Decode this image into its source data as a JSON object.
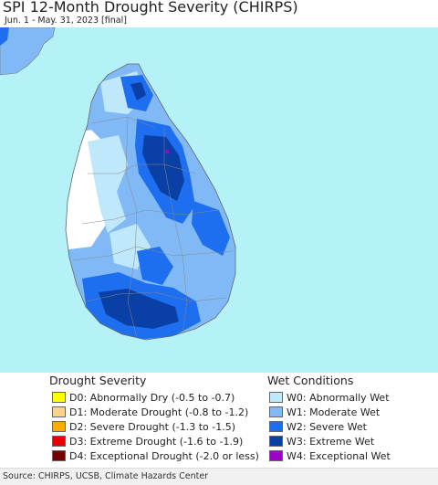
{
  "title": "SPI 12-Month Drought Severity (CHIRPS)",
  "subtitle": "Jun. 1 - May. 31, 2023 [final]",
  "legend_drought": {
    "title": "Drought Severity",
    "items": [
      {
        "label": "D0: Abnormally Dry (-0.5 to -0.7)",
        "color": "#ffff00"
      },
      {
        "label": "D1: Moderate Drought (-0.8 to -1.2)",
        "color": "#fcd28c"
      },
      {
        "label": "D2: Severe Drought (-1.3 to -1.5)",
        "color": "#ffaa00"
      },
      {
        "label": "D3: Extreme Drought (-1.6 to -1.9)",
        "color": "#e60000"
      },
      {
        "label": "D4: Exceptional Drought (-2.0 or less)",
        "color": "#730000"
      }
    ]
  },
  "legend_wet": {
    "title": "Wet Conditions",
    "items": [
      {
        "label": "W0: Abnormally Wet",
        "color": "#bfe8fb"
      },
      {
        "label": "W1: Moderate Wet",
        "color": "#80b9f5"
      },
      {
        "label": "W2: Severe Wet",
        "color": "#1e6ef0"
      },
      {
        "label": "W3: Extreme Wet",
        "color": "#0a3fa5"
      },
      {
        "label": "W4: Exceptional Wet",
        "color": "#a000c8"
      }
    ]
  },
  "source": "Source: CHIRPS, UCSB, Climate Hazards Center",
  "map_colors": {
    "ocean": "#b4f2f8",
    "land_neutral": "#ffffff",
    "w0": "#bfe8fb",
    "w1": "#80b9f5",
    "w2": "#1e6ef0",
    "w3": "#0a3fa5",
    "w4": "#a000c8"
  }
}
